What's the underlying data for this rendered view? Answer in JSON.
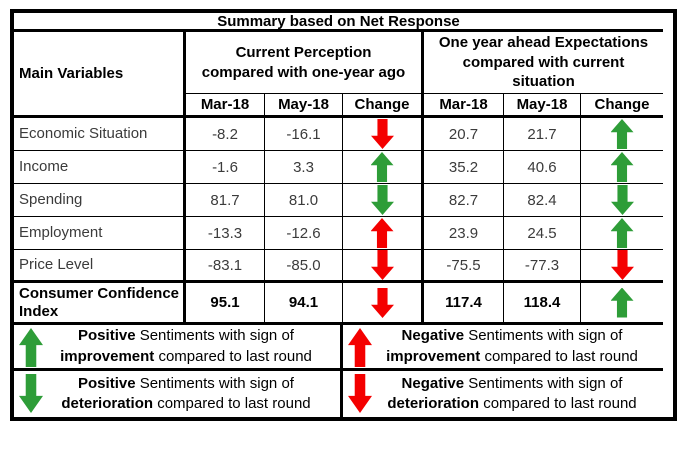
{
  "title": "Summary based on Net Response",
  "colors": {
    "positive_green": "#2e9d38",
    "negative_red": "#f40000",
    "border": "#000000"
  },
  "header": {
    "main_variables": "Main Variables",
    "group1_lines": [
      "Current Perception",
      "compared with one-year ago"
    ],
    "group2_lines": [
      "One year ahead Expectations",
      "compared with current",
      "situation"
    ],
    "sub": [
      "Mar-18",
      "May-18",
      "Change",
      "Mar-18",
      "May-18",
      "Change"
    ]
  },
  "rows": [
    {
      "label": "Economic Situation",
      "cp_mar": "-8.2",
      "cp_may": "-16.1",
      "cp_change": "arrow red down",
      "exp_mar": "20.7",
      "exp_may": "21.7",
      "exp_change": "arrow green up"
    },
    {
      "label": "Income",
      "cp_mar": "-1.6",
      "cp_may": "3.3",
      "cp_change": "arrow green up",
      "exp_mar": "35.2",
      "exp_may": "40.6",
      "exp_change": "arrow green up"
    },
    {
      "label": "Spending",
      "cp_mar": "81.7",
      "cp_may": "81.0",
      "cp_change": "arrow green down",
      "exp_mar": "82.7",
      "exp_may": "82.4",
      "exp_change": "arrow green down"
    },
    {
      "label": "Employment",
      "cp_mar": "-13.3",
      "cp_may": "-12.6",
      "cp_change": "arrow red up",
      "exp_mar": "23.9",
      "exp_may": "24.5",
      "exp_change": "arrow green up"
    },
    {
      "label": "Price Level",
      "cp_mar": "-83.1",
      "cp_may": "-85.0",
      "cp_change": "arrow red down",
      "exp_mar": "-75.5",
      "exp_may": "-77.3",
      "exp_change": "arrow red down"
    }
  ],
  "summary": {
    "label": "Consumer Confidence Index",
    "cp_mar": "95.1",
    "cp_may": "94.1",
    "cp_change": "arrow red down",
    "exp_mar": "117.4",
    "exp_may": "118.4",
    "exp_change": "arrow green up"
  },
  "legend": [
    {
      "arrow": "arrow green up",
      "bold1": "Positive",
      "rest1": " Sentiments with sign of",
      "bold2": "improvement",
      "rest2": " compared to last round"
    },
    {
      "arrow": "arrow red up",
      "bold1": "Negative",
      "rest1": " Sentiments with sign of",
      "bold2": "improvement",
      "rest2": " compared to last round"
    },
    {
      "arrow": "arrow green down",
      "bold1": "Positive",
      "rest1": " Sentiments with sign of",
      "bold2": "deterioration",
      "rest2": " compared to last round"
    },
    {
      "arrow": "arrow red down",
      "bold1": "Negative",
      "rest1": " Sentiments with sign of",
      "bold2": "deterioration",
      "rest2": " compared to last round"
    }
  ],
  "chart_data": {
    "type": "table",
    "title": "Summary based on Net Response",
    "column_groups": [
      "Main Variables",
      "Current Perception compared with one-year ago",
      "One year ahead Expectations compared with current situation"
    ],
    "columns": [
      "Main Variables",
      "CP Mar-18",
      "CP May-18",
      "CP Change",
      "EXP Mar-18",
      "EXP May-18",
      "EXP Change"
    ],
    "rows": [
      [
        "Economic Situation",
        -8.2,
        -16.1,
        "red-down",
        20.7,
        21.7,
        "green-up"
      ],
      [
        "Income",
        -1.6,
        3.3,
        "green-up",
        35.2,
        40.6,
        "green-up"
      ],
      [
        "Spending",
        81.7,
        81.0,
        "green-down",
        82.7,
        82.4,
        "green-down"
      ],
      [
        "Employment",
        -13.3,
        -12.6,
        "red-up",
        23.9,
        24.5,
        "green-up"
      ],
      [
        "Price Level",
        -83.1,
        -85.0,
        "red-down",
        -75.5,
        -77.3,
        "red-down"
      ],
      [
        "Consumer Confidence Index",
        95.1,
        94.1,
        "red-down",
        117.4,
        118.4,
        "green-up"
      ]
    ],
    "legend": [
      "green-up: Positive Sentiments with sign of improvement compared to last round",
      "red-up: Negative Sentiments with sign of improvement compared to last round",
      "green-down: Positive Sentiments with sign of deterioration compared to last round",
      "red-down: Negative Sentiments with sign of deterioration compared to last round"
    ]
  }
}
